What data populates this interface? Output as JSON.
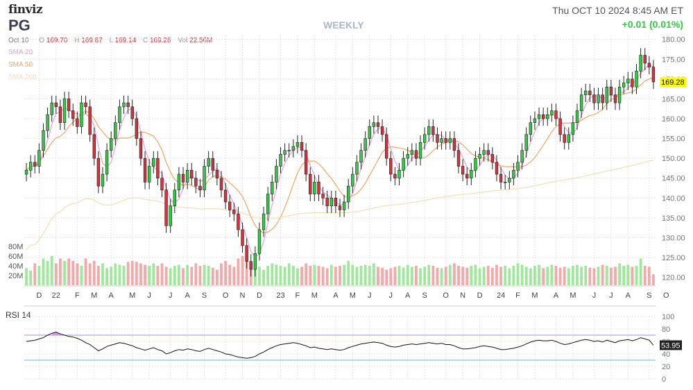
{
  "header": {
    "logo": "finviz",
    "ticker": "PG",
    "datetime": "Thu OCT 10 2024 8:45 AM ET",
    "change": "+0.01 (0.01%)",
    "period": "WEEKLY",
    "date": "Oct 10",
    "ohlc": {
      "o": "169.70",
      "h": "169.87",
      "l": "169.14",
      "c": "169.28",
      "vol": "22.56M"
    },
    "sma_labels": [
      "SMA 20",
      "SMA 50",
      "SMA 200"
    ],
    "rsi_label": "RSI 14"
  },
  "colors": {
    "up": "#2ecc40",
    "down": "#d0343c",
    "sma20": "#e8a0d8",
    "sma50": "#f4a460",
    "sma200": "#f5deb3",
    "vol_up": "#9ee89a",
    "vol_down": "#f4a9a9",
    "rsi_line": "#111111",
    "rsi_upper": "#b58ad8",
    "rsi_lower": "#5bc0de",
    "last_price_bg": "#ffff00"
  },
  "chart_data": {
    "type": "candlestick",
    "last_price_label": "169.28",
    "price_axis": {
      "ticks": [
        120,
        125,
        130,
        135,
        140,
        145,
        150,
        155,
        160,
        165,
        170,
        175,
        180
      ],
      "range": [
        118,
        181
      ]
    },
    "volume_axis": {
      "tick_labels": [
        "80M",
        "60M",
        "40M",
        "20M"
      ],
      "ticks": [
        80,
        60,
        40,
        20
      ],
      "max": 100
    },
    "rsi_axis": {
      "ticks": [
        0,
        20,
        40,
        60,
        80,
        100
      ],
      "range": [
        0,
        100
      ],
      "upper": 70,
      "lower": 30,
      "last_label": "53.95"
    },
    "x_labels": [
      "D",
      "22",
      "F",
      "M",
      "A",
      "M",
      "J",
      "J",
      "A",
      "S",
      "O",
      "N",
      "D",
      "23",
      "F",
      "M",
      "A",
      "M",
      "J",
      "J",
      "A",
      "S",
      "O",
      "N",
      "D",
      "24",
      "F",
      "M",
      "A",
      "M",
      "J",
      "J",
      "A",
      "S",
      "O"
    ],
    "x_label_weeks": [
      3,
      7,
      12,
      16,
      20,
      25,
      29,
      34,
      38,
      42,
      47,
      51,
      55,
      60,
      64,
      68,
      73,
      77,
      81,
      86,
      90,
      94,
      99,
      103,
      107,
      112,
      116,
      120,
      125,
      129,
      134,
      138,
      142,
      147,
      151
    ],
    "closes": [
      147,
      149,
      148,
      152,
      157,
      161,
      164,
      163,
      159,
      165,
      162,
      160,
      158,
      164,
      163,
      156,
      150,
      143,
      146,
      152,
      155,
      159,
      163,
      164,
      163,
      160,
      155,
      150,
      144,
      148,
      150,
      145,
      142,
      133,
      138,
      142,
      146,
      144,
      147,
      145,
      143,
      142,
      148,
      150,
      147,
      145,
      142,
      139,
      137,
      136,
      132,
      128,
      124,
      122,
      126,
      132,
      136,
      141,
      144,
      148,
      151,
      152,
      152,
      153,
      154,
      152,
      146,
      141,
      144,
      141,
      140,
      138,
      140,
      138,
      137,
      139,
      143,
      146,
      149,
      152,
      155,
      158,
      159,
      158,
      156,
      150,
      146,
      145,
      147,
      150,
      151,
      152,
      150,
      154,
      156,
      158,
      156,
      154,
      155,
      154,
      155,
      152,
      148,
      146,
      145,
      147,
      150,
      151,
      152,
      151,
      149,
      146,
      144,
      144,
      145,
      147,
      149,
      152,
      156,
      159,
      160,
      161,
      160,
      161,
      162,
      160,
      156,
      154,
      156,
      159,
      162,
      166,
      167,
      166,
      164,
      166,
      164,
      168,
      166,
      164,
      168,
      169,
      170,
      168,
      172,
      176,
      174,
      173,
      169.28
    ],
    "volumes": [
      35,
      30,
      45,
      40,
      55,
      50,
      60,
      45,
      55,
      50,
      55,
      50,
      45,
      40,
      55,
      45,
      50,
      40,
      45,
      35,
      38,
      45,
      42,
      40,
      48,
      50,
      48,
      45,
      42,
      40,
      45,
      40,
      45,
      38,
      35,
      40,
      42,
      35,
      42,
      38,
      45,
      40,
      42,
      40,
      36,
      32,
      45,
      50,
      42,
      38,
      55,
      60,
      50,
      40,
      35,
      38,
      32,
      40,
      45,
      42,
      40,
      38,
      45,
      40,
      35,
      38,
      45,
      40,
      42,
      40,
      38,
      35,
      42,
      38,
      40,
      42,
      50,
      42,
      38,
      40,
      42,
      40,
      45,
      38,
      36,
      32,
      35,
      38,
      40,
      36,
      42,
      38,
      40,
      35,
      38,
      42,
      40,
      36,
      35,
      38,
      42,
      45,
      40,
      38,
      36,
      40,
      42,
      35,
      38,
      40,
      36,
      42,
      38,
      40,
      35,
      40,
      45,
      42,
      38,
      35,
      40,
      42,
      35,
      38,
      42,
      40,
      36,
      38,
      35,
      40,
      42,
      38,
      40,
      36,
      35,
      38,
      42,
      40,
      36,
      38,
      45,
      40,
      42,
      38,
      40,
      55,
      40,
      38,
      22.56
    ],
    "rsi": [
      60,
      61,
      62,
      64,
      66,
      70,
      73,
      75,
      72,
      70,
      68,
      67,
      65,
      62,
      58,
      55,
      50,
      45,
      48,
      52,
      54,
      56,
      58,
      57,
      55,
      53,
      50,
      48,
      46,
      48,
      50,
      47,
      45,
      40,
      42,
      45,
      47,
      46,
      48,
      47,
      45,
      44,
      47,
      49,
      47,
      45,
      43,
      40,
      39,
      37,
      35,
      34,
      33,
      34,
      36,
      40,
      43,
      47,
      50,
      53,
      55,
      56,
      57,
      58,
      57,
      55,
      53,
      50,
      51,
      49,
      48,
      47,
      48,
      47,
      46,
      47,
      50,
      52,
      54,
      56,
      57,
      58,
      59,
      58,
      57,
      54,
      52,
      51,
      52,
      54,
      55,
      56,
      55,
      56,
      57,
      58,
      57,
      56,
      57,
      55,
      55,
      53,
      50,
      48,
      48,
      49,
      50,
      52,
      53,
      52,
      51,
      49,
      47,
      47,
      48,
      49,
      51,
      53,
      56,
      59,
      61,
      62,
      61,
      61,
      62,
      60,
      57,
      55,
      56,
      58,
      60,
      62,
      63,
      62,
      60,
      61,
      59,
      62,
      60,
      58,
      61,
      62,
      63,
      61,
      63,
      66,
      64,
      62,
      53.95
    ]
  }
}
